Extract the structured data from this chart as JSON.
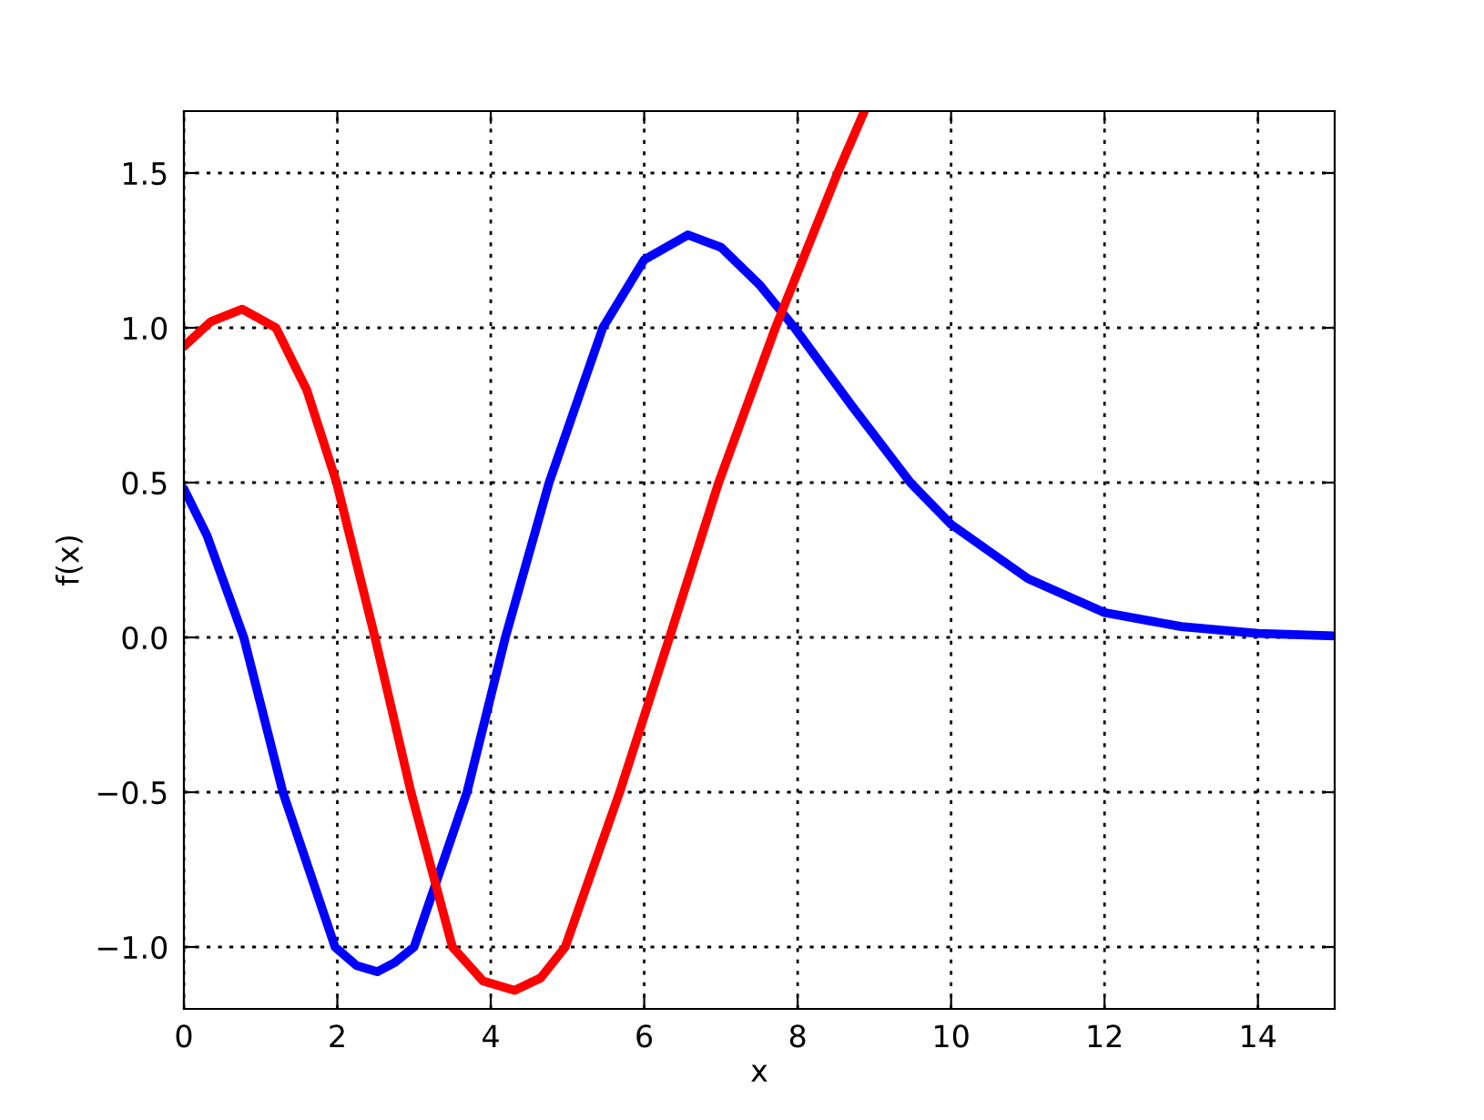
{
  "chart_data": {
    "type": "line",
    "xlabel": "x",
    "ylabel": "f(x)",
    "xlim": [
      0,
      15
    ],
    "ylim": [
      -1.2,
      1.7
    ],
    "xticks": [
      0,
      2,
      4,
      6,
      8,
      10,
      12,
      14
    ],
    "yticks": [
      {
        "value": -1.0,
        "label": "−1.0"
      },
      {
        "value": -0.5,
        "label": "−0.5"
      },
      {
        "value": 0.0,
        "label": "0.0"
      },
      {
        "value": 0.5,
        "label": "0.5"
      },
      {
        "value": 1.0,
        "label": "1.0"
      },
      {
        "value": 1.5,
        "label": "1.5"
      }
    ],
    "grid": true,
    "line_style": "solid",
    "marker": "none",
    "series": [
      {
        "color": "#0000ff",
        "x": [
          0,
          0.3,
          0.78,
          1.29,
          1.97,
          2.25,
          2.52,
          2.75,
          3.0,
          3.69,
          4.19,
          4.76,
          5.46,
          6.0,
          6.57,
          7.0,
          7.5,
          7.96,
          8.7,
          9.47,
          10,
          11,
          12,
          13,
          14,
          15
        ],
        "values": [
          0.48,
          0.33,
          0.0,
          -0.5,
          -1.0,
          -1.06,
          -1.08,
          -1.05,
          -1.0,
          -0.5,
          0.0,
          0.5,
          1.0,
          1.22,
          1.3,
          1.26,
          1.14,
          1.0,
          0.75,
          0.5,
          0.365,
          0.19,
          0.08,
          0.035,
          0.013,
          0.005
        ]
      },
      {
        "color": "#ff0000",
        "x": [
          0,
          0.35,
          0.76,
          1.2,
          1.6,
          1.99,
          2.49,
          2.96,
          3.5,
          3.9,
          4.31,
          4.65,
          4.97,
          5.68,
          6.33,
          6.97,
          7.71,
          8.52,
          8.87
        ],
        "values": [
          0.94,
          1.02,
          1.06,
          1.0,
          0.8,
          0.5,
          0.0,
          -0.5,
          -1.0,
          -1.11,
          -1.14,
          -1.1,
          -1.0,
          -0.5,
          0.0,
          0.5,
          1.0,
          1.5,
          1.7
        ]
      }
    ]
  }
}
